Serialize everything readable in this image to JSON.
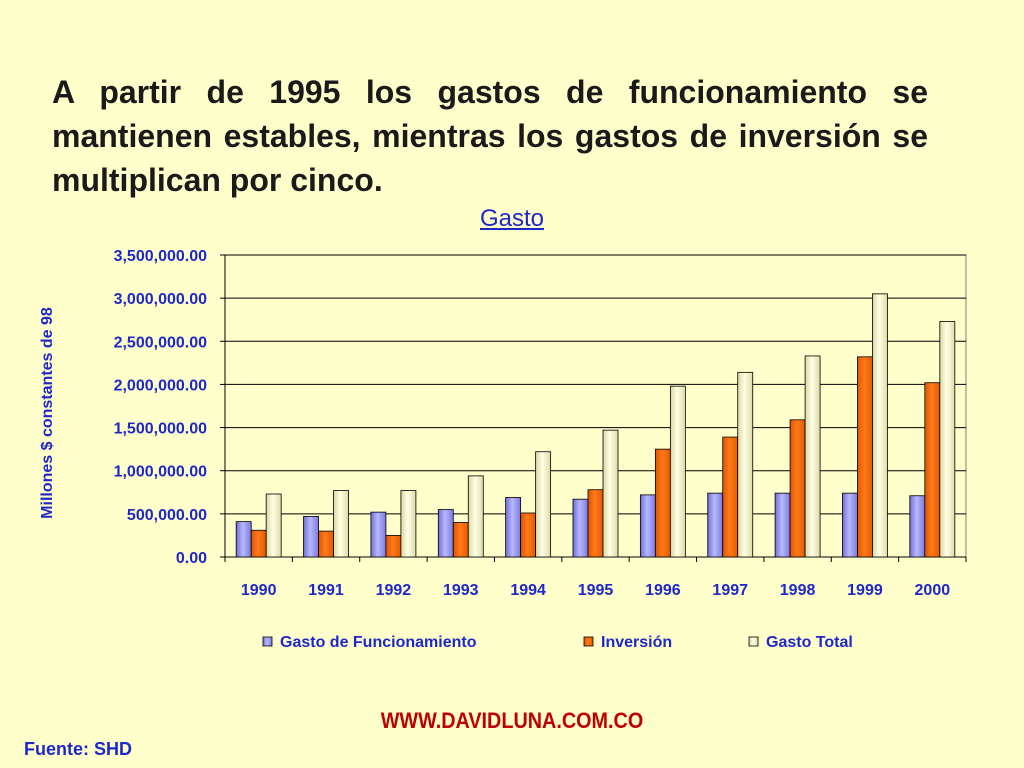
{
  "headline": "A partir de 1995 los gastos de funcionamiento se mantienen estables, mientras los gastos de inversión se multiplican por cinco.",
  "footer_url": "WWW.DAVIDLUNA.COM.CO",
  "source": "Fuente: SHD",
  "colors": {
    "background": "#FFFFCC",
    "text_blue": "#1E28C8",
    "footer_red": "#C00000"
  },
  "chart_data": {
    "type": "bar",
    "title": "Gasto",
    "xlabel": "",
    "ylabel": "Millones $ constantes de  98",
    "ylim": [
      0,
      3500000
    ],
    "yticks": [
      "0.00",
      "500,000.00",
      "1,000,000.00",
      "1,500,000.00",
      "2,000,000.00",
      "2,500,000.00",
      "3,000,000.00",
      "3,500,000.00"
    ],
    "grid": true,
    "legend": "bottom",
    "categories": [
      "1990",
      "1991",
      "1992",
      "1993",
      "1994",
      "1995",
      "1996",
      "1997",
      "1998",
      "1999",
      "2000"
    ],
    "series": [
      {
        "name": "Gasto de Funcionamiento",
        "color": "#9999FF",
        "values": [
          410000,
          470000,
          520000,
          550000,
          690000,
          670000,
          720000,
          740000,
          740000,
          740000,
          710000
        ]
      },
      {
        "name": "Inversión",
        "color": "#FF6600",
        "values": [
          310000,
          300000,
          250000,
          400000,
          510000,
          780000,
          1250000,
          1390000,
          1590000,
          2320000,
          2020000
        ]
      },
      {
        "name": "Gasto Total",
        "color": "#FFFFCC",
        "values": [
          730000,
          770000,
          770000,
          940000,
          1220000,
          1470000,
          1980000,
          2140000,
          2330000,
          3050000,
          2730000
        ]
      }
    ]
  }
}
